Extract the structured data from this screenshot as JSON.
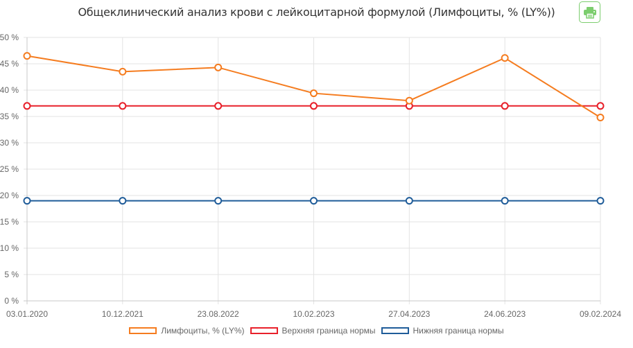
{
  "header": {
    "title": "Общеклинический анализ крови с лейкоцитарной формулой (Лимфоциты, % (LY%))",
    "print_icon": "printer-icon",
    "print_color": "#7ccd6e"
  },
  "legend": [
    {
      "label": "Лимфоциты, % (LY%)",
      "color": "#f57c1f"
    },
    {
      "label": "Верхняя граница нормы",
      "color": "#e8202a"
    },
    {
      "label": "Нижняя граница нормы",
      "color": "#1f5c99"
    }
  ],
  "chart_data": {
    "type": "line",
    "title": "Общеклинический анализ крови с лейкоцитарной формулой (Лимфоциты, % (LY%))",
    "xlabel": "",
    "ylabel": "",
    "categories": [
      "03.01.2020",
      "10.12.2021",
      "23.08.2022",
      "10.02.2023",
      "27.04.2023",
      "24.06.2023",
      "09.02.2024"
    ],
    "series": [
      {
        "name": "Лимфоциты, % (LY%)",
        "color": "#f57c1f",
        "values": [
          46.5,
          43.5,
          44.3,
          39.4,
          38.0,
          46.1,
          34.8
        ]
      },
      {
        "name": "Верхняя граница нормы",
        "color": "#e8202a",
        "values": [
          37,
          37,
          37,
          37,
          37,
          37,
          37
        ]
      },
      {
        "name": "Нижняя граница нормы",
        "color": "#1f5c99",
        "values": [
          19,
          19,
          19,
          19,
          19,
          19,
          19
        ]
      }
    ],
    "ylim": [
      0,
      50
    ],
    "yticks": [
      "0 %",
      "5 %",
      "10 %",
      "15 %",
      "20 %",
      "25 %",
      "30 %",
      "35 %",
      "40 %",
      "45 %",
      "50 %"
    ],
    "grid": true,
    "legend_position": "bottom"
  }
}
